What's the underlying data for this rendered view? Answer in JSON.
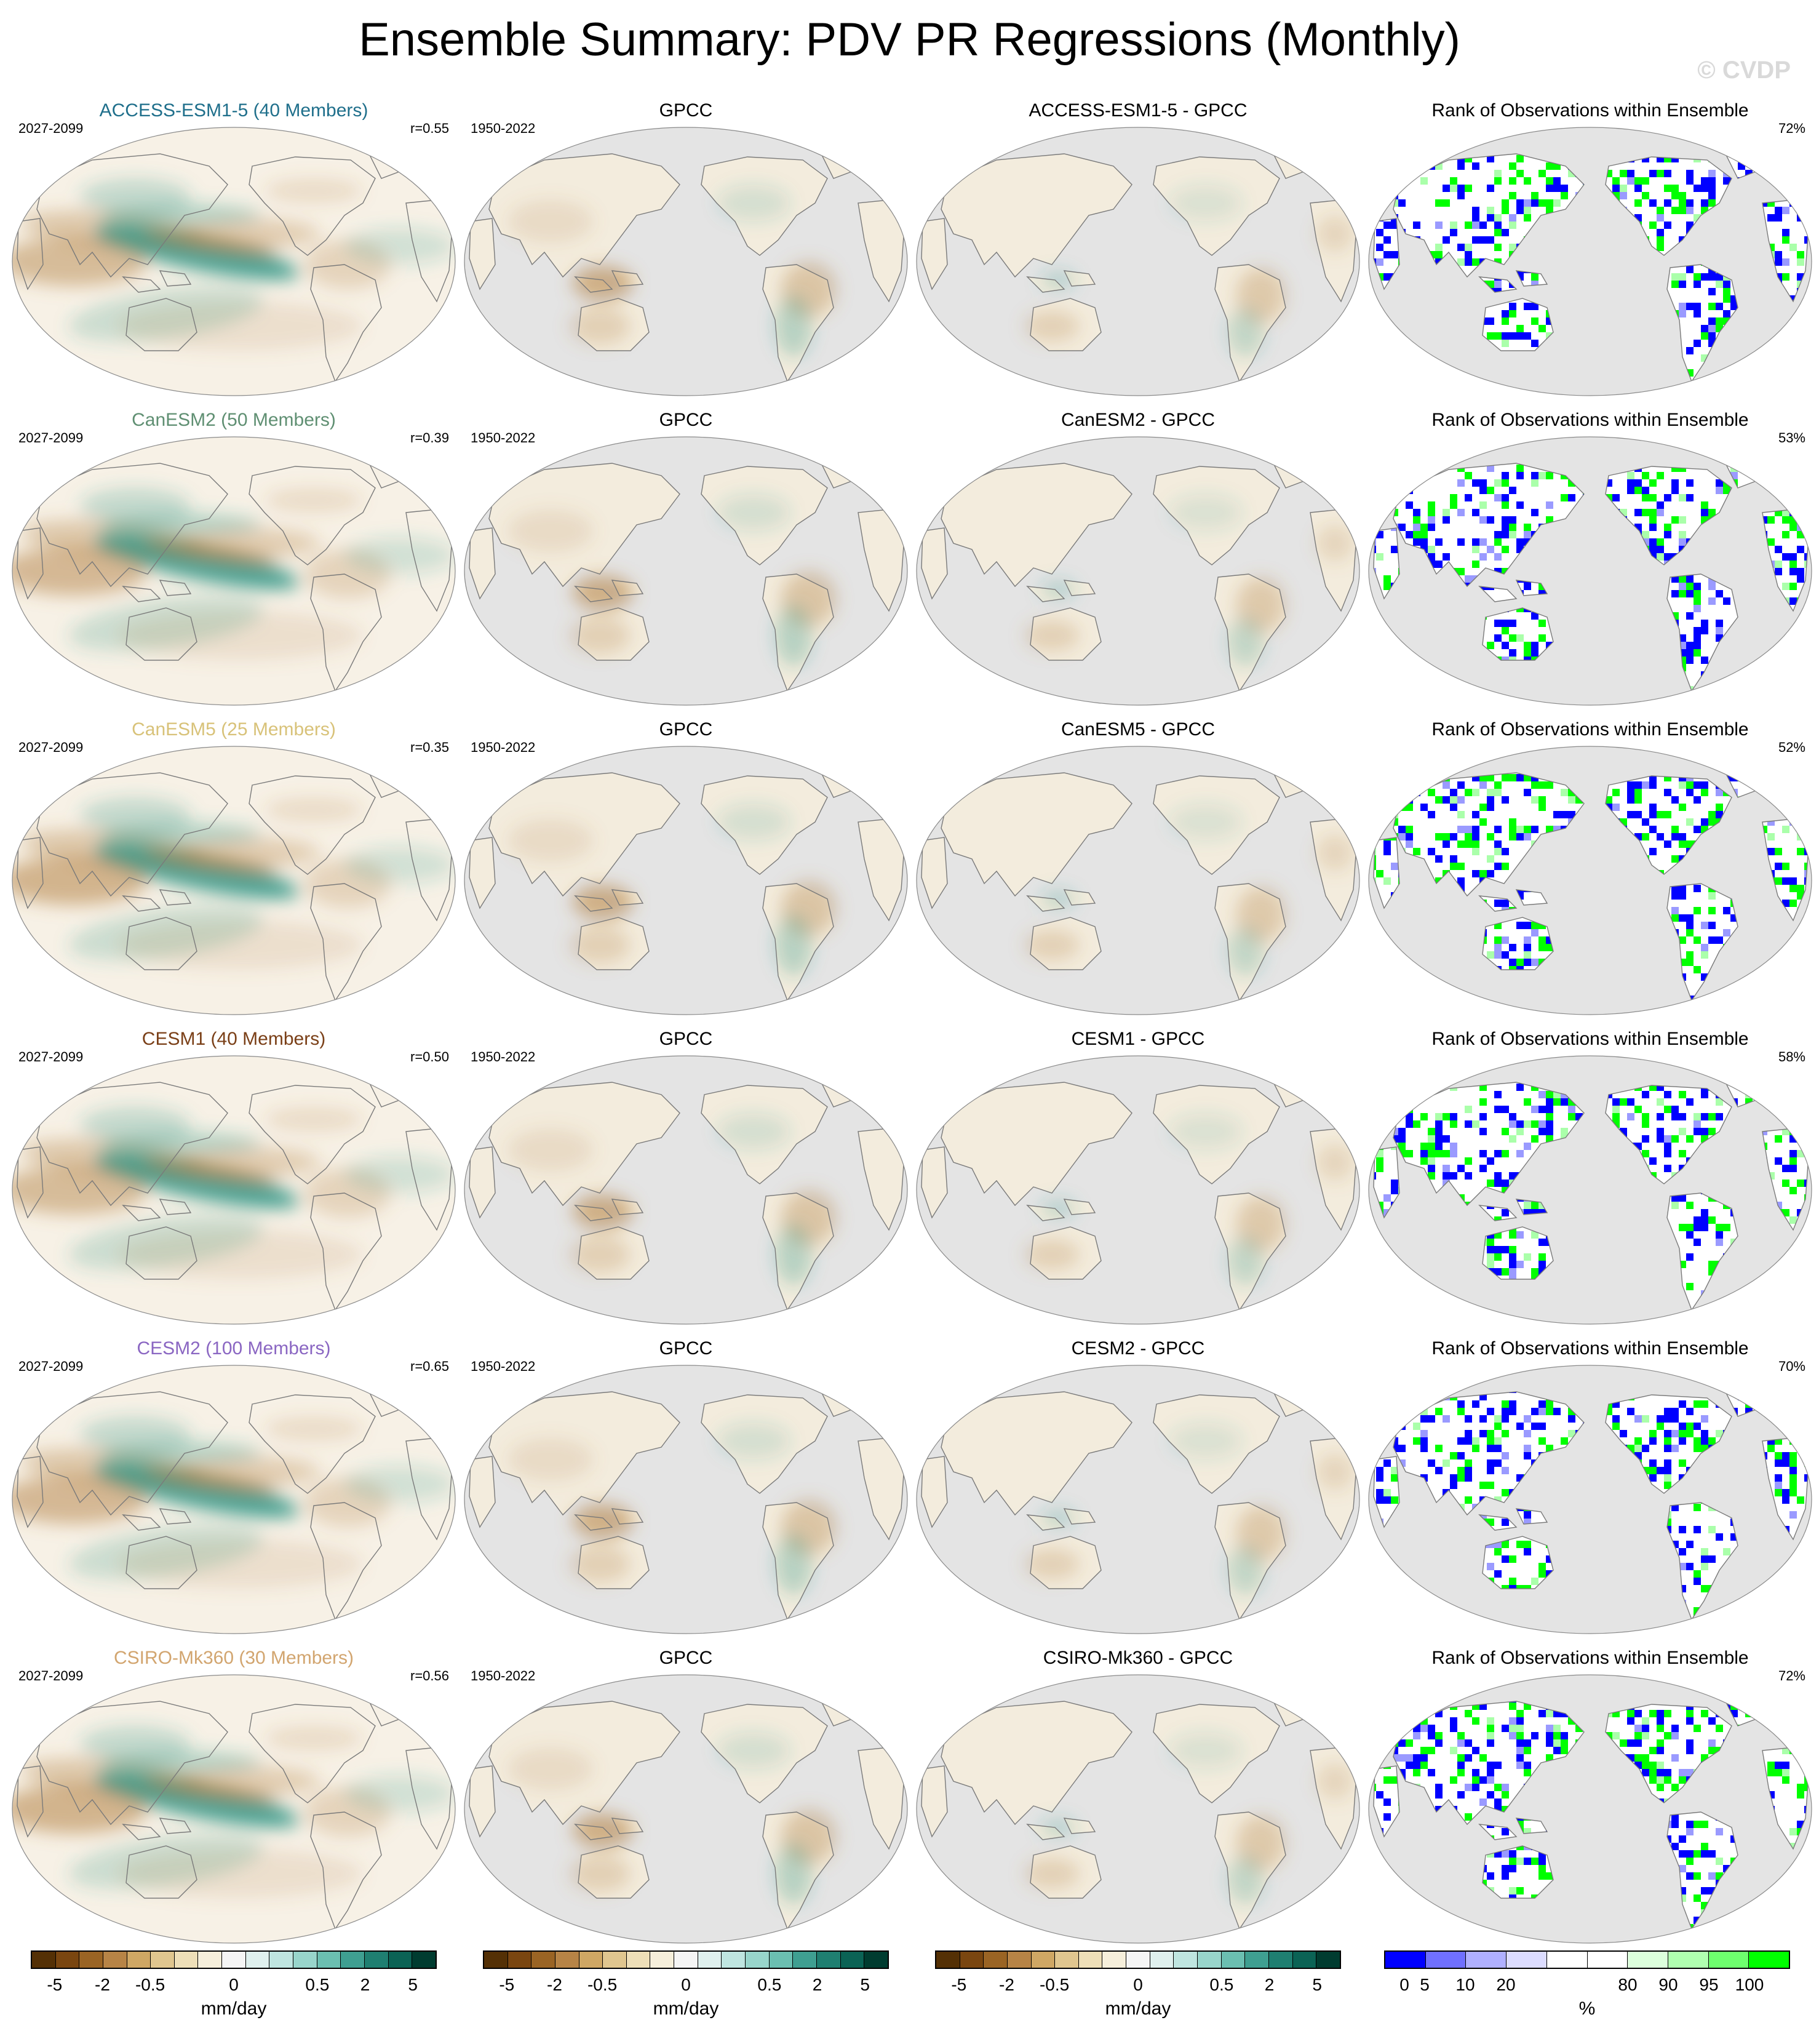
{
  "title": "Ensemble Summary: PDV PR Regressions (Monthly)",
  "watermark": "© CVDP",
  "rows": [
    {
      "model": "ACCESS-ESM1-5 (40 Members)",
      "model_color": "#1f6f8b",
      "model_period": "2027-2099",
      "r": "r=0.55",
      "obs": "GPCC",
      "obs_period": "1950-2022",
      "diff": "ACCESS-ESM1-5 - GPCC",
      "rank_title": "Rank of Observations within Ensemble",
      "rank_pct": "72%"
    },
    {
      "model": "CanESM2 (50 Members)",
      "model_color": "#5f8f72",
      "model_period": "2027-2099",
      "r": "r=0.39",
      "obs": "GPCC",
      "obs_period": "1950-2022",
      "diff": "CanESM2 - GPCC",
      "rank_title": "Rank of Observations within Ensemble",
      "rank_pct": "53%"
    },
    {
      "model": "CanESM5 (25 Members)",
      "model_color": "#d8c279",
      "model_period": "2027-2099",
      "r": "r=0.35",
      "obs": "GPCC",
      "obs_period": "1950-2022",
      "diff": "CanESM5 - GPCC",
      "rank_title": "Rank of Observations within Ensemble",
      "rank_pct": "52%"
    },
    {
      "model": "CESM1 (40 Members)",
      "model_color": "#7a3f17",
      "model_period": "2027-2099",
      "r": "r=0.50",
      "obs": "GPCC",
      "obs_period": "1950-2022",
      "diff": "CESM1 - GPCC",
      "rank_title": "Rank of Observations within Ensemble",
      "rank_pct": "58%"
    },
    {
      "model": "CESM2 (100 Members)",
      "model_color": "#8a66c2",
      "model_period": "2027-2099",
      "r": "r=0.65",
      "obs": "GPCC",
      "obs_period": "1950-2022",
      "diff": "CESM2 - GPCC",
      "rank_title": "Rank of Observations within Ensemble",
      "rank_pct": "70%"
    },
    {
      "model": "CSIRO-Mk360 (30 Members)",
      "model_color": "#d2a56f",
      "model_period": "2027-2099",
      "r": "r=0.56",
      "obs": "GPCC",
      "obs_period": "1950-2022",
      "diff": "CSIRO-Mk360 - GPCC",
      "rank_title": "Rank of Observations within Ensemble",
      "rank_pct": "72%"
    }
  ],
  "colorbars": {
    "precip": {
      "ticks": [
        "-5",
        "-2",
        "-0.5",
        "0",
        "0.5",
        "2",
        "5"
      ],
      "unit": "mm/day",
      "colors": [
        "#543005",
        "#7a4610",
        "#9a6424",
        "#b78446",
        "#cfa764",
        "#e0c68f",
        "#eedfb8",
        "#f6efdb",
        "#f5f5f5",
        "#dff0ee",
        "#bfe5e0",
        "#98d5cb",
        "#6bbfb1",
        "#3f9f91",
        "#1f7f71",
        "#0b6355",
        "#003c30"
      ]
    },
    "rank": {
      "ticks": [
        "0",
        "5",
        "10",
        "20",
        "80",
        "90",
        "95",
        "100"
      ],
      "unit": "%",
      "colors": [
        "#0000ff",
        "#7070ff",
        "#b0b0ff",
        "#dcdcff",
        "#ffffff",
        "#ffffff",
        "#dcffdc",
        "#b0ffb0",
        "#6eff6e",
        "#00ff00"
      ]
    }
  },
  "colors": {
    "ocean_gray": "#e4e4e4",
    "coast": "#7a7a7a",
    "brown_dry": "#b07c3c",
    "teal_wet": "#2e9585",
    "rank_low": "#0000ff",
    "rank_high": "#00ff00"
  }
}
